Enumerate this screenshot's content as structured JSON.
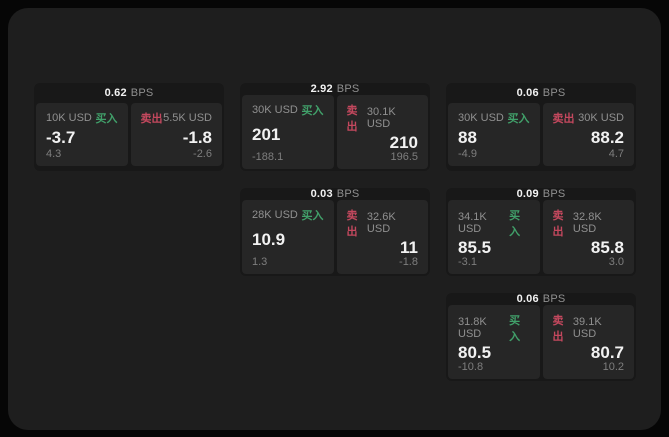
{
  "labels": {
    "buy": "买入",
    "sell": "卖出",
    "bps": "BPS"
  },
  "colors": {
    "bg": "#060606",
    "panel": "#1e1e1e",
    "card": "#181818",
    "tile": "#262626",
    "text-gray": "#909090",
    "text-dim": "#7e7e7e",
    "text-white": "#f2f2f2",
    "buy": "#41a06a",
    "sell": "#c4485e"
  },
  "cards": [
    {
      "bps": "0.62",
      "buy": {
        "size": "10K USD",
        "value": "-3.7",
        "sub": "4.3"
      },
      "sell": {
        "size": "5.5K USD",
        "value": "-1.8",
        "sub": "-2.6"
      }
    },
    {
      "bps": "2.92",
      "buy": {
        "size": "30K USD",
        "value": "201",
        "sub": "-188.1"
      },
      "sell": {
        "size": "30.1K USD",
        "value": "210",
        "sub": "196.5"
      }
    },
    {
      "bps": "0.06",
      "buy": {
        "size": "30K USD",
        "value": "88",
        "sub": "-4.9"
      },
      "sell": {
        "size": "30K USD",
        "value": "88.2",
        "sub": "4.7"
      }
    },
    {
      "bps": "0.03",
      "buy": {
        "size": "28K USD",
        "value": "10.9",
        "sub": "1.3"
      },
      "sell": {
        "size": "32.6K USD",
        "value": "11",
        "sub": "-1.8"
      }
    },
    {
      "bps": "0.09",
      "buy": {
        "size": "34.1K USD",
        "value": "85.5",
        "sub": "-3.1"
      },
      "sell": {
        "size": "32.8K USD",
        "value": "85.8",
        "sub": "3.0"
      }
    },
    {
      "bps": "0.06",
      "buy": {
        "size": "31.8K USD",
        "value": "80.5",
        "sub": "-10.8"
      },
      "sell": {
        "size": "39.1K USD",
        "value": "80.7",
        "sub": "10.2"
      }
    }
  ]
}
